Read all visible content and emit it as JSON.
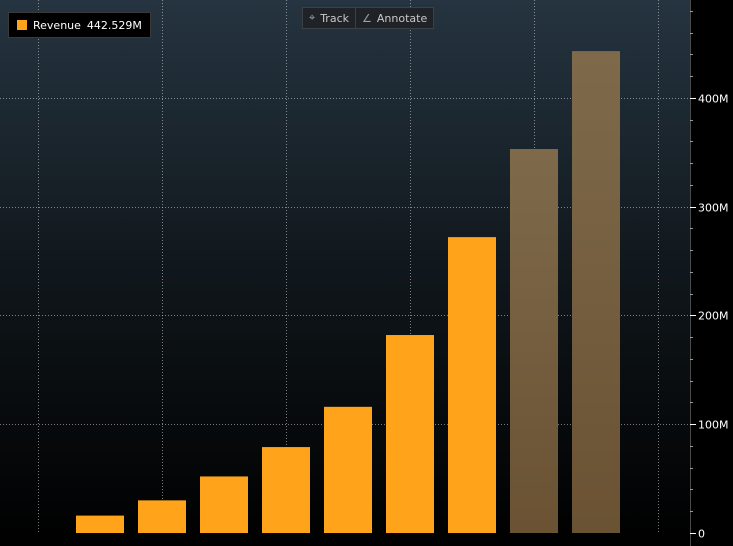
{
  "legend": {
    "label": "Revenue",
    "value": "442.529M"
  },
  "toolbar": {
    "track_label": "Track",
    "annotate_label": "Annotate"
  },
  "icons": {
    "track": "crosshair-icon",
    "annotate": "pencil-icon"
  },
  "colors": {
    "actual_bar": "#FFA31A",
    "estimate_bar": "#7E6A4B",
    "background_top": "#253440",
    "background_bottom": "#000000",
    "grid": "#d8d8d8",
    "axis_text": "#ffffff"
  },
  "chart_data": {
    "type": "bar",
    "series": [
      {
        "name": "Revenue",
        "values": [
          16,
          30,
          52,
          79,
          116,
          182,
          272,
          353,
          443
        ],
        "estimated": [
          false,
          false,
          false,
          false,
          false,
          false,
          false,
          true,
          true
        ]
      }
    ],
    "ylim": [
      0,
      490
    ],
    "y_axis_side": "right",
    "y_ticks": [
      0,
      100,
      200,
      300,
      400
    ],
    "y_tick_labels": [
      "0",
      "100M",
      "200M",
      "300M",
      "400M"
    ],
    "grid": true,
    "legend_position": "top-left"
  }
}
